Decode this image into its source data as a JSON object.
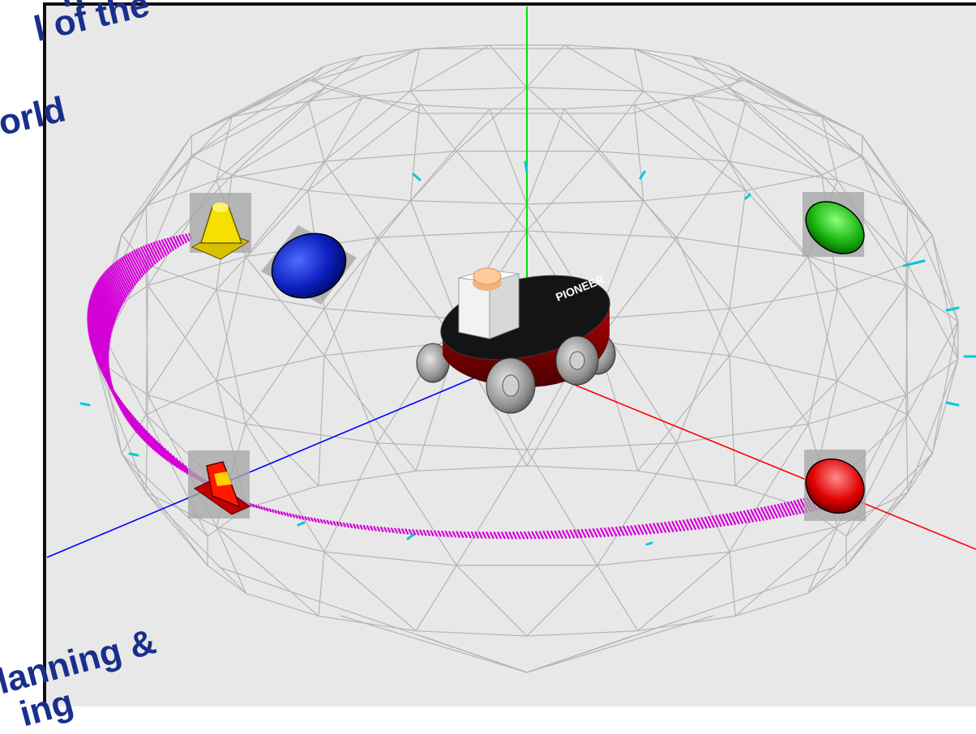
{
  "captions": {
    "top_line1": "n",
    "top_line2": "l of the",
    "top_line3": "orld",
    "bottom_line1": "lanning &",
    "bottom_line2": "ing"
  },
  "robot": {
    "plate_label": "PIONEER"
  },
  "objects": [
    {
      "kind": "cone",
      "color": "yellow"
    },
    {
      "kind": "sphere",
      "color": "blue"
    },
    {
      "kind": "sphere",
      "color": "green"
    },
    {
      "kind": "cone",
      "color": "red"
    },
    {
      "kind": "sphere",
      "color": "red"
    }
  ],
  "colors": {
    "background": "#e8e8e8",
    "wireframe": "#b4b4b4",
    "trajectory": "#d400d8",
    "x_axis": "#ff0000",
    "y_axis": "#00e000",
    "z_axis": "#0000ff",
    "markers": "#00c8d8",
    "caption": "#1a2f8c"
  }
}
